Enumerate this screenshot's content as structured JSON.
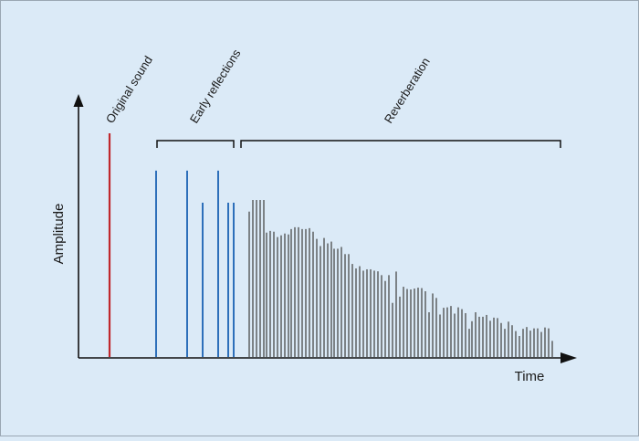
{
  "diagram": {
    "y_axis_label": "Amplitude",
    "x_axis_label": "Time",
    "sections": {
      "original": "Original sound",
      "early": "Early reflections",
      "reverb": "Reverberation"
    }
  },
  "chart_data": {
    "type": "impulse",
    "xlabel": "Time",
    "ylabel": "Amplitude",
    "colors": {
      "original": "#c0282d",
      "early": "#2d6fba",
      "reverb": "#4a4a4a",
      "axis": "#111111"
    },
    "series": [
      {
        "name": "Original sound",
        "points": [
          [
            120,
            1.0
          ]
        ]
      },
      {
        "name": "Early reflections",
        "points": [
          [
            171,
            0.833
          ],
          [
            205,
            0.833
          ],
          [
            222,
            0.69
          ],
          [
            239,
            0.833
          ],
          [
            250,
            0.69
          ],
          [
            256,
            0.69
          ]
        ]
      },
      {
        "name": "Reverberation",
        "points": [
          [
            273,
            0.65
          ],
          [
            277,
            0.702
          ],
          [
            281,
            0.702
          ],
          [
            285,
            0.702
          ],
          [
            289,
            0.702
          ],
          [
            292,
            0.556
          ],
          [
            296,
            0.564
          ],
          [
            300,
            0.56
          ],
          [
            304,
            0.536
          ],
          [
            308,
            0.544
          ],
          [
            312,
            0.552
          ],
          [
            316,
            0.548
          ],
          [
            319,
            0.572
          ],
          [
            323,
            0.58
          ],
          [
            327,
            0.58
          ],
          [
            331,
            0.572
          ],
          [
            335,
            0.572
          ],
          [
            339,
            0.576
          ],
          [
            343,
            0.56
          ],
          [
            347,
            0.528
          ],
          [
            351,
            0.496
          ],
          [
            355,
            0.532
          ],
          [
            359,
            0.508
          ],
          [
            363,
            0.516
          ],
          [
            366,
            0.484
          ],
          [
            370,
            0.484
          ],
          [
            374,
            0.492
          ],
          [
            378,
            0.46
          ],
          [
            382,
            0.46
          ],
          [
            386,
            0.416
          ],
          [
            390,
            0.396
          ],
          [
            394,
            0.406
          ],
          [
            398,
            0.386
          ],
          [
            402,
            0.392
          ],
          [
            406,
            0.392
          ],
          [
            410,
            0.386
          ],
          [
            414,
            0.383
          ],
          [
            418,
            0.366
          ],
          [
            422,
            0.34
          ],
          [
            426,
            0.366
          ],
          [
            430,
            0.242
          ],
          [
            434,
            0.382
          ],
          [
            438,
            0.27
          ],
          [
            442,
            0.314
          ],
          [
            446,
            0.304
          ],
          [
            450,
            0.302
          ],
          [
            454,
            0.306
          ],
          [
            458,
            0.31
          ],
          [
            462,
            0.308
          ],
          [
            466,
            0.294
          ],
          [
            470,
            0.2
          ],
          [
            474,
            0.284
          ],
          [
            478,
            0.264
          ],
          [
            482,
            0.19
          ],
          [
            486,
            0.22
          ],
          [
            490,
            0.222
          ],
          [
            494,
            0.228
          ],
          [
            498,
            0.194
          ],
          [
            502,
            0.222
          ],
          [
            506,
            0.214
          ],
          [
            510,
            0.196
          ],
          [
            514,
            0.126
          ],
          [
            517,
            0.16
          ],
          [
            521,
            0.2
          ],
          [
            525,
            0.18
          ],
          [
            529,
            0.18
          ],
          [
            533,
            0.188
          ],
          [
            537,
            0.162
          ],
          [
            541,
            0.176
          ],
          [
            545,
            0.174
          ],
          [
            549,
            0.152
          ],
          [
            553,
            0.126
          ],
          [
            557,
            0.158
          ],
          [
            561,
            0.142
          ],
          [
            565,
            0.116
          ],
          [
            569,
            0.094
          ],
          [
            573,
            0.126
          ],
          [
            577,
            0.134
          ],
          [
            581,
            0.118
          ],
          [
            585,
            0.128
          ],
          [
            589,
            0.128
          ],
          [
            593,
            0.112
          ],
          [
            597,
            0.132
          ],
          [
            601,
            0.128
          ],
          [
            605,
            0.072
          ]
        ]
      }
    ]
  }
}
